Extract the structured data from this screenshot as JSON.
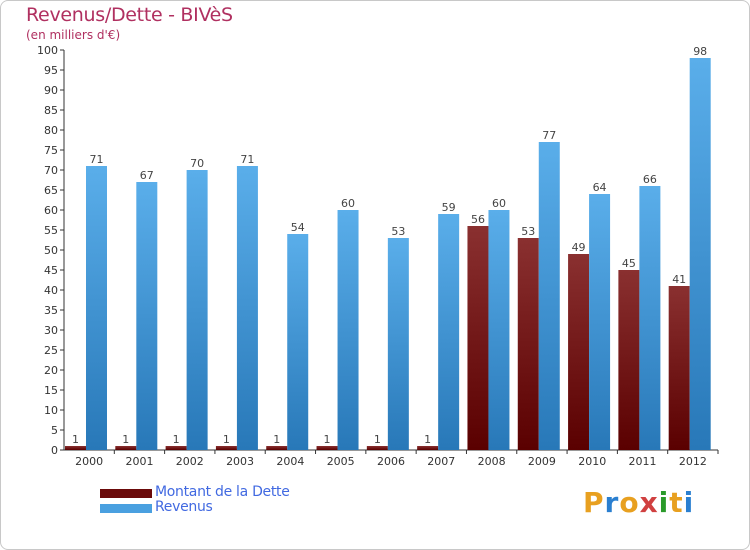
{
  "header": {
    "title": "Revenus/Dette - BIVèS",
    "subtitle": "(en milliers d'€)"
  },
  "chart_data": {
    "type": "bar",
    "categories": [
      "2000",
      "2001",
      "2002",
      "2003",
      "2004",
      "2005",
      "2006",
      "2007",
      "2008",
      "2009",
      "2010",
      "2011",
      "2012"
    ],
    "series": [
      {
        "name": "Montant de la Dette",
        "color": "#6b0a0a",
        "values": [
          1,
          1,
          1,
          1,
          1,
          1,
          1,
          1,
          56,
          53,
          49,
          45,
          41
        ]
      },
      {
        "name": "Revenus",
        "color": "#4aa0e0",
        "values": [
          71,
          67,
          70,
          71,
          54,
          60,
          53,
          59,
          60,
          77,
          64,
          66,
          98
        ]
      }
    ],
    "ylim": [
      0,
      100
    ],
    "ytick_step": 5,
    "grid": false,
    "legend": "bottom-left"
  },
  "logo": {
    "letters": [
      "P",
      "r",
      "o",
      "x",
      "i",
      "t",
      "i"
    ],
    "colors": [
      "#e8a020",
      "#2a7fd0",
      "#e8a020",
      "#d04040",
      "#2a9a2a",
      "#e8a020",
      "#2a7fd0"
    ]
  }
}
